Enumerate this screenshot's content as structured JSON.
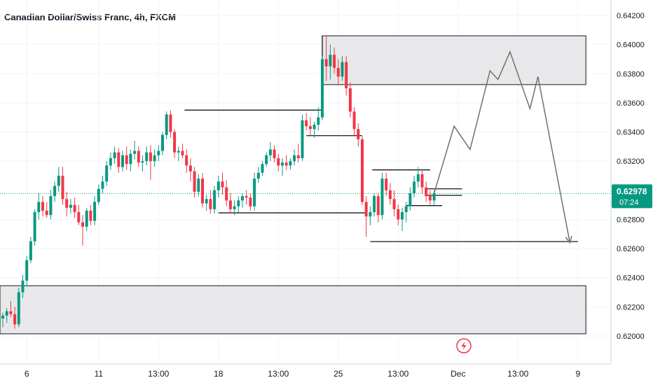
{
  "chart_data": {
    "type": "candlestick",
    "title": "Canadian Dollar/Swiss Franc, 4h, FXCM",
    "ylim": [
      0.6198,
      0.6424
    ],
    "x_range": [
      0,
      146
    ],
    "y_ticks": [
      "0.64200",
      "0.64000",
      "0.63800",
      "0.63600",
      "0.63400",
      "0.63200",
      "0.62800",
      "0.62600",
      "0.62400",
      "0.62200",
      "0.62000"
    ],
    "x_ticks": [
      {
        "label": "6",
        "i": 6
      },
      {
        "label": "11",
        "i": 24
      },
      {
        "label": "13:00",
        "i": 39
      },
      {
        "label": "18",
        "i": 54
      },
      {
        "label": "13:00",
        "i": 69
      },
      {
        "label": "25",
        "i": 84
      },
      {
        "label": "13:00",
        "i": 99
      },
      {
        "label": "Dec",
        "i": 114
      },
      {
        "label": "13:00",
        "i": 129
      },
      {
        "label": "9",
        "i": 144
      }
    ],
    "last_price": {
      "label": "0.62978",
      "value": 0.62978,
      "timer": "07:24"
    },
    "colors": {
      "up": "#089981",
      "down": "#f23645",
      "last_price_bg": "#089981",
      "zone_fill": "#e8e8ea",
      "line": "#131722",
      "projection": "#707070"
    },
    "candles": [
      [
        0,
        0.6212,
        0.6216,
        0.6206,
        0.6214
      ],
      [
        1,
        0.6214,
        0.6219,
        0.6209,
        0.6217
      ],
      [
        2,
        0.6217,
        0.6224,
        0.6213,
        0.6215
      ],
      [
        3,
        0.6215,
        0.622,
        0.6205,
        0.6208
      ],
      [
        4,
        0.6208,
        0.6233,
        0.6206,
        0.623
      ],
      [
        5,
        0.623,
        0.6242,
        0.6226,
        0.6238
      ],
      [
        6,
        0.6238,
        0.6255,
        0.6235,
        0.6252
      ],
      [
        7,
        0.6252,
        0.6268,
        0.625,
        0.6265
      ],
      [
        8,
        0.6265,
        0.6287,
        0.6262,
        0.6285
      ],
      [
        9,
        0.6285,
        0.6298,
        0.628,
        0.6292
      ],
      [
        10,
        0.6292,
        0.6296,
        0.6282,
        0.6286
      ],
      [
        11,
        0.6286,
        0.6292,
        0.6281,
        0.6283
      ],
      [
        12,
        0.6283,
        0.63,
        0.628,
        0.6296
      ],
      [
        13,
        0.6296,
        0.6306,
        0.6292,
        0.6303
      ],
      [
        14,
        0.6303,
        0.6316,
        0.6299,
        0.631
      ],
      [
        15,
        0.631,
        0.6316,
        0.629,
        0.6294
      ],
      [
        16,
        0.6294,
        0.6299,
        0.6282,
        0.6288
      ],
      [
        17,
        0.6288,
        0.6294,
        0.6284,
        0.629
      ],
      [
        18,
        0.629,
        0.6295,
        0.6281,
        0.6285
      ],
      [
        19,
        0.6285,
        0.629,
        0.6276,
        0.6278
      ],
      [
        20,
        0.6278,
        0.6283,
        0.6262,
        0.6275
      ],
      [
        21,
        0.6275,
        0.6288,
        0.6272,
        0.6286
      ],
      [
        22,
        0.6286,
        0.629,
        0.6276,
        0.6279
      ],
      [
        23,
        0.6279,
        0.6296,
        0.6276,
        0.6292
      ],
      [
        24,
        0.6292,
        0.6304,
        0.629,
        0.6301
      ],
      [
        25,
        0.6301,
        0.631,
        0.6298,
        0.6306
      ],
      [
        26,
        0.6306,
        0.632,
        0.6303,
        0.6317
      ],
      [
        27,
        0.6317,
        0.6326,
        0.6314,
        0.6322
      ],
      [
        28,
        0.6322,
        0.633,
        0.6318,
        0.6326
      ],
      [
        29,
        0.6326,
        0.6329,
        0.6312,
        0.6316
      ],
      [
        30,
        0.6316,
        0.6327,
        0.6313,
        0.6324
      ],
      [
        31,
        0.6324,
        0.633,
        0.6314,
        0.6318
      ],
      [
        32,
        0.6318,
        0.6328,
        0.6313,
        0.6325
      ],
      [
        33,
        0.6325,
        0.6334,
        0.6321,
        0.6327
      ],
      [
        34,
        0.6327,
        0.633,
        0.6316,
        0.6319
      ],
      [
        35,
        0.6319,
        0.6324,
        0.6313,
        0.632
      ],
      [
        36,
        0.632,
        0.633,
        0.6317,
        0.6326
      ],
      [
        37,
        0.6326,
        0.6331,
        0.6307,
        0.632
      ],
      [
        38,
        0.632,
        0.6328,
        0.6316,
        0.6324
      ],
      [
        39,
        0.6324,
        0.6331,
        0.632,
        0.6327
      ],
      [
        40,
        0.6327,
        0.634,
        0.6324,
        0.6338
      ],
      [
        41,
        0.6338,
        0.6354,
        0.6335,
        0.6352
      ],
      [
        42,
        0.6352,
        0.6355,
        0.6336,
        0.634
      ],
      [
        43,
        0.634,
        0.6342,
        0.6322,
        0.6326
      ],
      [
        44,
        0.6326,
        0.633,
        0.632,
        0.6327
      ],
      [
        45,
        0.6327,
        0.6332,
        0.6322,
        0.6324
      ],
      [
        46,
        0.6324,
        0.6328,
        0.6312,
        0.6317
      ],
      [
        47,
        0.6317,
        0.6322,
        0.6306,
        0.6313
      ],
      [
        48,
        0.6313,
        0.6316,
        0.6295,
        0.6299
      ],
      [
        49,
        0.6299,
        0.6311,
        0.6296,
        0.6308
      ],
      [
        50,
        0.6308,
        0.6312,
        0.6288,
        0.6291
      ],
      [
        51,
        0.6291,
        0.6297,
        0.6286,
        0.6294
      ],
      [
        52,
        0.6294,
        0.63,
        0.6284,
        0.6287
      ],
      [
        53,
        0.6287,
        0.6303,
        0.6284,
        0.63
      ],
      [
        54,
        0.63,
        0.631,
        0.6295,
        0.6306
      ],
      [
        55,
        0.6306,
        0.6312,
        0.6297,
        0.6302
      ],
      [
        56,
        0.6302,
        0.6307,
        0.6289,
        0.6293
      ],
      [
        57,
        0.6293,
        0.6298,
        0.6284,
        0.6287
      ],
      [
        58,
        0.6287,
        0.6293,
        0.6283,
        0.6289
      ],
      [
        59,
        0.6289,
        0.6296,
        0.6285,
        0.6293
      ],
      [
        60,
        0.6293,
        0.6298,
        0.6288,
        0.6296
      ],
      [
        61,
        0.6296,
        0.63,
        0.629,
        0.6295
      ],
      [
        62,
        0.6295,
        0.6298,
        0.6286,
        0.6289
      ],
      [
        63,
        0.6289,
        0.6312,
        0.6286,
        0.6308
      ],
      [
        64,
        0.6308,
        0.6316,
        0.6305,
        0.6312
      ],
      [
        65,
        0.6312,
        0.632,
        0.631,
        0.6318
      ],
      [
        66,
        0.6318,
        0.6326,
        0.6316,
        0.6324
      ],
      [
        67,
        0.6324,
        0.6333,
        0.632,
        0.6328
      ],
      [
        68,
        0.6328,
        0.6331,
        0.6319,
        0.6322
      ],
      [
        69,
        0.6322,
        0.6325,
        0.6313,
        0.6317
      ],
      [
        70,
        0.6317,
        0.6322,
        0.631,
        0.6319
      ],
      [
        71,
        0.6319,
        0.6324,
        0.6314,
        0.6317
      ],
      [
        72,
        0.6317,
        0.6322,
        0.6314,
        0.632
      ],
      [
        73,
        0.632,
        0.6328,
        0.6317,
        0.6324
      ],
      [
        74,
        0.6324,
        0.6332,
        0.6319,
        0.6322
      ],
      [
        75,
        0.6322,
        0.6352,
        0.632,
        0.6348
      ],
      [
        76,
        0.6348,
        0.6353,
        0.6341,
        0.6344
      ],
      [
        77,
        0.6344,
        0.635,
        0.6338,
        0.6342
      ],
      [
        78,
        0.6342,
        0.6347,
        0.6336,
        0.6345
      ],
      [
        79,
        0.6345,
        0.6357,
        0.6341,
        0.635
      ],
      [
        80,
        0.635,
        0.6392,
        0.6348,
        0.639
      ],
      [
        81,
        0.639,
        0.6406,
        0.6375,
        0.6385
      ],
      [
        82,
        0.6385,
        0.64,
        0.6376,
        0.6393
      ],
      [
        83,
        0.6393,
        0.6398,
        0.638,
        0.6384
      ],
      [
        84,
        0.6384,
        0.639,
        0.6372,
        0.6378
      ],
      [
        85,
        0.6378,
        0.6392,
        0.6375,
        0.6388
      ],
      [
        86,
        0.6388,
        0.6392,
        0.6365,
        0.637
      ],
      [
        87,
        0.637,
        0.6374,
        0.635,
        0.6354
      ],
      [
        88,
        0.6354,
        0.6357,
        0.6338,
        0.6342
      ],
      [
        89,
        0.6342,
        0.6346,
        0.633,
        0.6335
      ],
      [
        90,
        0.6335,
        0.6337,
        0.629,
        0.6292
      ],
      [
        91,
        0.6292,
        0.6296,
        0.6268,
        0.6282
      ],
      [
        92,
        0.6282,
        0.6289,
        0.6276,
        0.6285
      ],
      [
        93,
        0.6285,
        0.6298,
        0.6282,
        0.6296
      ],
      [
        94,
        0.6296,
        0.6298,
        0.6278,
        0.6283
      ],
      [
        95,
        0.6283,
        0.6312,
        0.628,
        0.6308
      ],
      [
        96,
        0.6308,
        0.6312,
        0.6296,
        0.63
      ],
      [
        97,
        0.63,
        0.6305,
        0.629,
        0.6294
      ],
      [
        98,
        0.6294,
        0.63,
        0.6282,
        0.6287
      ],
      [
        99,
        0.6287,
        0.629,
        0.6276,
        0.628
      ],
      [
        100,
        0.628,
        0.6288,
        0.6272,
        0.6285
      ],
      [
        101,
        0.6285,
        0.6292,
        0.6278,
        0.6289
      ],
      [
        102,
        0.6289,
        0.6302,
        0.6286,
        0.6298
      ],
      [
        103,
        0.6298,
        0.631,
        0.6295,
        0.6306
      ],
      [
        104,
        0.6306,
        0.6316,
        0.6302,
        0.6311
      ],
      [
        105,
        0.6311,
        0.6314,
        0.6298,
        0.6302
      ],
      [
        106,
        0.6302,
        0.6306,
        0.6292,
        0.6296
      ],
      [
        107,
        0.6296,
        0.63,
        0.629,
        0.6293
      ],
      [
        108,
        0.6293,
        0.63,
        0.629,
        0.6298
      ]
    ],
    "zones": [
      {
        "i0": 80,
        "i1": 146,
        "y0": 0.63725,
        "y1": 0.6406
      },
      {
        "i0": -1,
        "i1": 146,
        "y0": 0.62015,
        "y1": 0.62345
      }
    ],
    "lines": [
      {
        "i0": 45.5,
        "i1": 80,
        "y": 0.6355
      },
      {
        "i0": 76,
        "i1": 90,
        "y": 0.63375
      },
      {
        "i0": 54,
        "i1": 91,
        "y": 0.62845
      },
      {
        "i0": 92.5,
        "i1": 107,
        "y": 0.6314
      },
      {
        "i0": 101,
        "i1": 110,
        "y": 0.62895
      },
      {
        "i0": 106,
        "i1": 115,
        "y": 0.62965
      },
      {
        "i0": 106,
        "i1": 115,
        "y": 0.6301
      },
      {
        "i0": 92,
        "i1": 144,
        "y": 0.62648
      }
    ],
    "verticals": [
      {
        "i": 80,
        "y0": 0.6375,
        "y1": 0.6406
      }
    ],
    "projection": [
      [
        108,
        0.6298
      ],
      [
        113,
        0.6344
      ],
      [
        117,
        0.6328
      ],
      [
        122,
        0.6382
      ],
      [
        124,
        0.6376
      ],
      [
        127,
        0.6395
      ],
      [
        132,
        0.6356
      ],
      [
        134,
        0.6378
      ],
      [
        142,
        0.6264
      ]
    ]
  }
}
